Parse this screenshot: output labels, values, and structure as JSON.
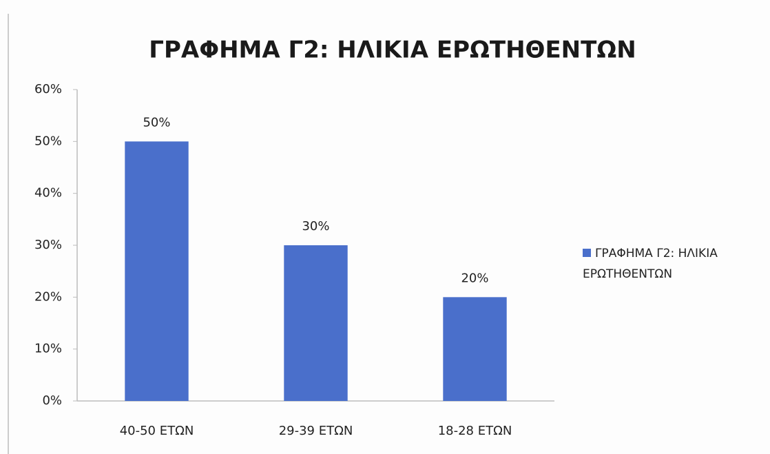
{
  "chart_data": {
    "type": "bar",
    "title": "ΓΡΑΦΗΜΑ Γ2: ΗΛΙΚΙΑ ΕΡΩΤΗΘΕΝΤΩΝ",
    "categories": [
      "40-50 ΕΤΩΝ",
      "29-39 ΕΤΩΝ",
      "18-28 ΕΤΩΝ"
    ],
    "series": [
      {
        "name": "ΓΡΑΦΗΜΑ Γ2: ΗΛΙΚΙΑ ΕΡΩΤΗΘΕΝΤΩΝ",
        "color": "#4a6fcb",
        "values": [
          50,
          30,
          20
        ],
        "value_labels": [
          "50%",
          "30%",
          "20%"
        ]
      }
    ],
    "ylim": [
      0,
      60
    ],
    "yticks": [
      {
        "value": 0,
        "label": "0%"
      },
      {
        "value": 10,
        "label": "10%"
      },
      {
        "value": 20,
        "label": "20%"
      },
      {
        "value": 30,
        "label": "30%"
      },
      {
        "value": 40,
        "label": "40%"
      },
      {
        "value": 50,
        "label": "50%"
      },
      {
        "value": 60,
        "label": "60%"
      }
    ],
    "grid": false,
    "legend": "right"
  }
}
